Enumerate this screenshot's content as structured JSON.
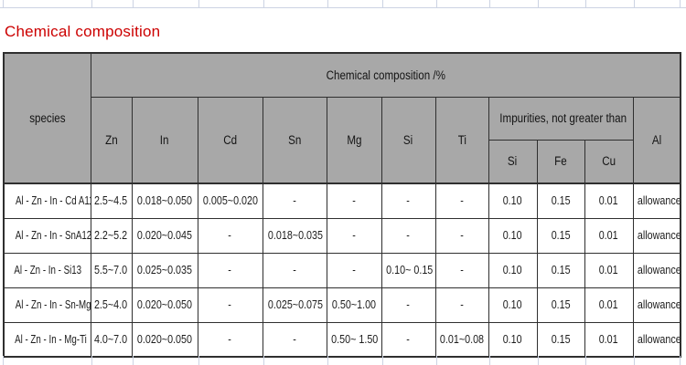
{
  "title": "Chemical composition",
  "table": {
    "species_header": "species",
    "group_header": "Chemical composition /%",
    "elements": [
      "Zn",
      "In",
      "Cd",
      "Sn",
      "Mg",
      "Si",
      "Ti"
    ],
    "impurities_header": "Impurities, not greater than",
    "impurity_elements": [
      "Si",
      "Fe",
      "Cu"
    ],
    "al_header": "Al",
    "rows": [
      {
        "species": "Al - Zn - In - Cd A11",
        "zn": "2.5~4.5",
        "in": "0.018~0.050",
        "cd": "0.005~0.020",
        "sn": "-",
        "mg": "-",
        "si": "-",
        "ti": "-",
        "imp_si": "0.10",
        "imp_fe": "0.15",
        "imp_cu": "0.01",
        "al": "allowance"
      },
      {
        "species": "Al - Zn - In - SnA12",
        "zn": "2.2~5.2",
        "in": "0.020~0.045",
        "cd": "-",
        "sn": "0.018~0.035",
        "mg": "-",
        "si": "-",
        "ti": "-",
        "imp_si": "0.10",
        "imp_fe": "0.15",
        "imp_cu": "0.01",
        "al": "allowance"
      },
      {
        "species": "Al - Zn - In - Si13",
        "zn": "5.5~7.0",
        "in": "0.025~0.035",
        "cd": "-",
        "sn": "-",
        "mg": "-",
        "si": "0.10~ 0.15",
        "ti": "-",
        "imp_si": "0.10",
        "imp_fe": "0.15",
        "imp_cu": "0.01",
        "al": "allowance"
      },
      {
        "species": "Al - Zn - In - Sn-Mg",
        "zn": "2.5~4.0",
        "in": "0.020~0.050",
        "cd": "-",
        "sn": "0.025~0.075",
        "mg": "0.50~1.00",
        "si": "-",
        "ti": "-",
        "imp_si": "0.10",
        "imp_fe": "0.15",
        "imp_cu": "0.01",
        "al": "allowance"
      },
      {
        "species": "Al - Zn - In - Mg-Ti",
        "zn": "4.0~7.0",
        "in": "0.020~0.050",
        "cd": "-",
        "sn": "-",
        "mg": "0.50~ 1.50",
        "si": "-",
        "ti": "0.01~0.08",
        "imp_si": "0.10",
        "imp_fe": "0.15",
        "imp_cu": "0.01",
        "al": "allowance"
      }
    ]
  },
  "colors": {
    "title_red": "#cc0000",
    "header_bg": "#a8a8a8",
    "table_border": "#2f2f2f",
    "faint_grid": "#ccd3e3"
  }
}
